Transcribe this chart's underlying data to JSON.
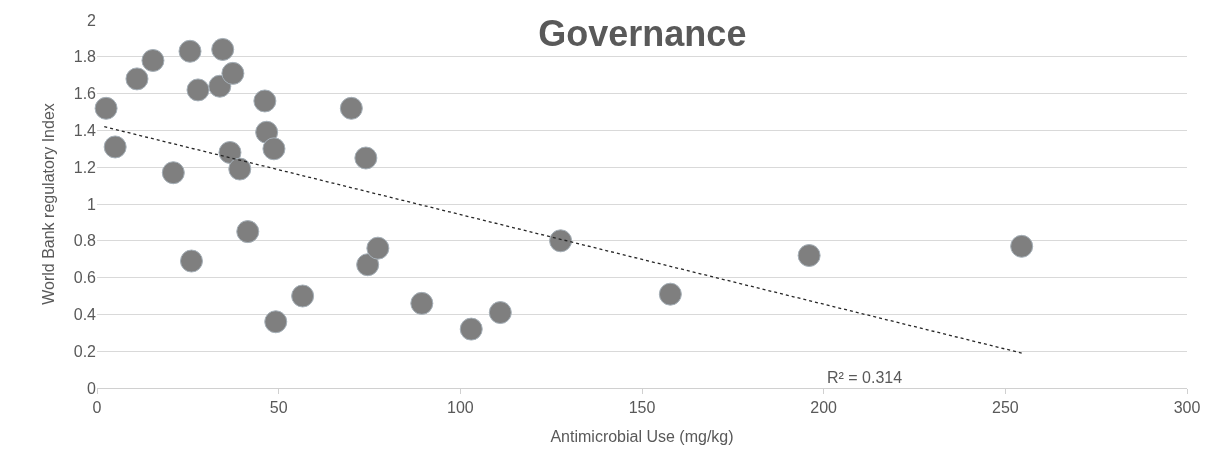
{
  "chart_data": {
    "type": "scatter",
    "title": "Governance",
    "xlabel": "Antimicrobial Use (mg/kg)",
    "ylabel": "World Bank regulatory Index",
    "annotations": [
      "R² = 0.314"
    ],
    "series": [
      {
        "color": "#7f7f7f",
        "x": [
          2.5,
          5,
          11,
          15.4,
          21,
          25.6,
          26,
          27.8,
          33.8,
          34.6,
          36.6,
          37.4,
          39.3,
          41.5,
          46.2,
          46.7,
          48.7,
          49.2,
          56.6,
          70,
          74,
          74.5,
          77.3,
          89.4,
          103,
          111,
          127.6,
          157.8,
          196,
          254.5
        ],
        "values": [
          1.52,
          1.31,
          1.68,
          1.78,
          1.17,
          1.83,
          0.69,
          1.62,
          1.64,
          1.84,
          1.28,
          1.71,
          1.19,
          0.85,
          1.56,
          1.39,
          1.3,
          0.36,
          0.5,
          1.52,
          1.25,
          0.67,
          0.76,
          0.46,
          0.32,
          0.41,
          0.8,
          0.51,
          0.72,
          0.77
        ]
      },
      {
        "type": "line",
        "color": "#262626",
        "line_style": "dotted",
        "marker": "none",
        "x": [
          2,
          254.5
        ],
        "values": [
          1.42,
          0.19
        ]
      }
    ],
    "xlim": [
      0,
      300
    ],
    "xticks": [
      0,
      50,
      100,
      150,
      200,
      250,
      300
    ],
    "ylim": [
      0,
      2
    ],
    "yticks": [
      0,
      0.2,
      0.4,
      0.6,
      0.8,
      1,
      1.2,
      1.4,
      1.6,
      1.8,
      2
    ],
    "grid": "y",
    "marker": "circle"
  }
}
